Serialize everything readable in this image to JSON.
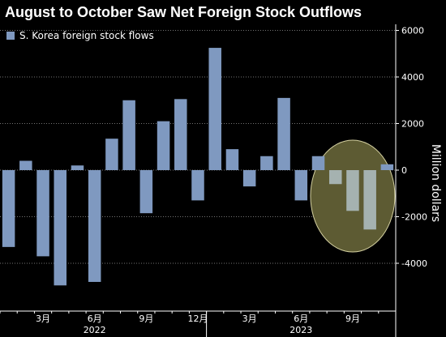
{
  "chart_data": {
    "type": "bar",
    "title": "August to October Saw Net Foreign Stock Outflows",
    "ylabel": "Million dollars",
    "ylim": [
      -6000,
      6000
    ],
    "yticks": [
      6000,
      4000,
      2000,
      0,
      -2000,
      -4000
    ],
    "ytick_labels": [
      "6000",
      "4000",
      "2000",
      "0",
      "-2000",
      "-4000"
    ],
    "grid": true,
    "legend_position": "top-left",
    "categories": [
      "2022-01",
      "2022-02",
      "2022-03",
      "2022-04",
      "2022-05",
      "2022-06",
      "2022-07",
      "2022-08",
      "2022-09",
      "2022-10",
      "2022-11",
      "2022-12",
      "2023-01",
      "2023-02",
      "2023-03",
      "2023-04",
      "2023-05",
      "2023-06",
      "2023-07",
      "2023-08",
      "2023-09",
      "2023-10",
      "2023-11"
    ],
    "series": [
      {
        "name": "S. Korea foreign stock flows",
        "color": "#7f99c0",
        "values": [
          -3300,
          400,
          -3700,
          -4950,
          200,
          -4800,
          1350,
          3000,
          -1850,
          2100,
          3050,
          -1300,
          5250,
          900,
          -700,
          600,
          3100,
          -1300,
          600,
          -600,
          -1750,
          -2550,
          250
        ]
      }
    ],
    "highlight": {
      "from": "2023-08",
      "to": "2023-10",
      "fill": "#5d5b33",
      "stroke": "#d4d0a0",
      "bar_color": "#a5b2b0"
    },
    "x_tick_labels": [
      {
        "category": "2022-03",
        "label": "3月"
      },
      {
        "category": "2022-06",
        "label": "6月"
      },
      {
        "category": "2022-09",
        "label": "9月"
      },
      {
        "category": "2022-12",
        "label": "12月"
      },
      {
        "category": "2023-03",
        "label": "3月"
      },
      {
        "category": "2023-06",
        "label": "6月"
      },
      {
        "category": "2023-09",
        "label": "9月"
      }
    ],
    "year_labels": [
      {
        "category": "2022-06",
        "label": "2022"
      },
      {
        "category": "2023-06",
        "label": "2023"
      }
    ],
    "year_dividers": [
      "2023-01"
    ],
    "colors": {
      "background": "#000000",
      "grid": "#ffffff",
      "text": "#ffffff"
    }
  }
}
